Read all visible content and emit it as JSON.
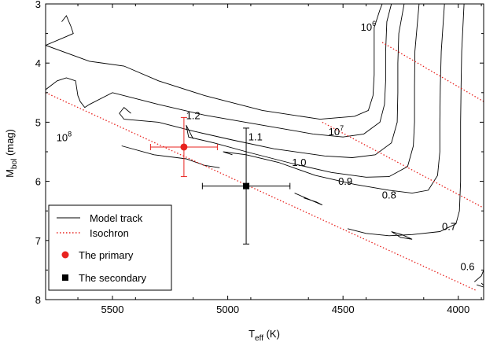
{
  "chart_data": {
    "type": "scatter",
    "xlabel": "T",
    "xlabel_sub": "eff",
    "xlabel_unit": " (K)",
    "ylabel": "M",
    "ylabel_sub": "bol",
    "ylabel_unit": " (mag)",
    "xlim": [
      5790,
      3890
    ],
    "ylim": [
      8,
      3
    ],
    "x_ticks": [
      5500,
      5000,
      4500,
      4000
    ],
    "y_ticks": [
      3,
      4,
      5,
      6,
      7,
      8
    ],
    "colors": {
      "track": "#000000",
      "isochron": "#e8231f",
      "primary": "#e8231f",
      "secondary": "#000000"
    },
    "legend": {
      "position": "bottom-left",
      "entries": [
        {
          "label": "Model track",
          "style": "line"
        },
        {
          "label": "Isochron",
          "style": "dotted-line"
        },
        {
          "label": "The primary",
          "style": "circle"
        },
        {
          "label": "The secondary",
          "style": "square"
        }
      ]
    },
    "isochrons": [
      {
        "label": "10",
        "exponent": "6",
        "points": [
          [
            4330,
            3.65
          ],
          [
            3890,
            4.65
          ]
        ]
      },
      {
        "label": "10",
        "exponent": "7",
        "points": [
          [
            4590,
            5.0
          ],
          [
            3890,
            6.45
          ]
        ]
      },
      {
        "label": "10",
        "exponent": "8",
        "points": [
          [
            5790,
            4.5
          ],
          [
            3920,
            7.85
          ]
        ]
      }
    ],
    "tracks": [
      {
        "mass": "1.2",
        "points": [
          [
            5720,
            3.3
          ],
          [
            5700,
            3.2
          ],
          [
            5680,
            3.38
          ],
          [
            5670,
            3.5
          ],
          [
            5700,
            3.55
          ],
          [
            5790,
            3.7
          ],
          [
            5600,
            3.97
          ],
          [
            5450,
            4.05
          ],
          [
            5300,
            4.3
          ],
          [
            5100,
            4.55
          ],
          [
            4850,
            4.8
          ],
          [
            4600,
            4.95
          ],
          [
            4450,
            4.9
          ],
          [
            4390,
            4.8
          ],
          [
            4370,
            4.55
          ],
          [
            4365,
            4.2
          ],
          [
            4365,
            3.8
          ],
          [
            4365,
            3.4
          ],
          [
            4340,
            3.1
          ],
          [
            4330,
            3.0
          ]
        ]
      },
      {
        "mass": "1.1",
        "points": [
          [
            5790,
            4.45
          ],
          [
            5740,
            4.3
          ],
          [
            5700,
            4.25
          ],
          [
            5660,
            4.3
          ],
          [
            5650,
            4.55
          ],
          [
            5640,
            4.65
          ],
          [
            5620,
            4.75
          ],
          [
            5600,
            4.7
          ],
          [
            5500,
            4.5
          ],
          [
            5300,
            4.7
          ],
          [
            5100,
            4.88
          ],
          [
            4850,
            5.05
          ],
          [
            4630,
            5.2
          ],
          [
            4500,
            5.25
          ],
          [
            4410,
            5.2
          ],
          [
            4340,
            5.0
          ],
          [
            4320,
            4.7
          ],
          [
            4315,
            4.3
          ],
          [
            4315,
            3.8
          ],
          [
            4310,
            3.3
          ],
          [
            4290,
            3.0
          ]
        ]
      },
      {
        "mass": "1.0",
        "points": [
          [
            5420,
            4.85
          ],
          [
            5450,
            4.75
          ],
          [
            5470,
            4.85
          ],
          [
            5450,
            4.95
          ],
          [
            5300,
            5.0
          ],
          [
            5150,
            5.15
          ],
          [
            4980,
            5.3
          ],
          [
            4800,
            5.45
          ],
          [
            4580,
            5.57
          ],
          [
            4460,
            5.6
          ],
          [
            4360,
            5.55
          ],
          [
            4290,
            5.35
          ],
          [
            4265,
            5.0
          ],
          [
            4262,
            4.5
          ],
          [
            4262,
            4.0
          ],
          [
            4258,
            3.5
          ],
          [
            4235,
            3.0
          ]
        ]
      },
      {
        "mass": "0.9",
        "points": [
          [
            5150,
            5.28
          ],
          [
            5180,
            5.05
          ],
          [
            5170,
            5.25
          ],
          [
            5060,
            5.35
          ],
          [
            4900,
            5.52
          ],
          [
            4720,
            5.7
          ],
          [
            4550,
            5.85
          ],
          [
            4400,
            5.93
          ],
          [
            4300,
            5.92
          ],
          [
            4220,
            5.75
          ],
          [
            4195,
            5.4
          ],
          [
            4190,
            5.0
          ],
          [
            4190,
            4.4
          ],
          [
            4188,
            3.8
          ],
          [
            4170,
            3.0
          ]
        ]
      },
      {
        "mass": "0.8",
        "points": [
          [
            4980,
            5.55
          ],
          [
            5020,
            5.5
          ],
          [
            4920,
            5.55
          ],
          [
            4780,
            5.68
          ],
          [
            4620,
            5.9
          ],
          [
            4450,
            6.05
          ],
          [
            4300,
            6.15
          ],
          [
            4200,
            6.2
          ],
          [
            4130,
            6.15
          ],
          [
            4090,
            5.9
          ],
          [
            4080,
            5.5
          ],
          [
            4080,
            5.0
          ],
          [
            4078,
            4.4
          ],
          [
            4074,
            3.8
          ],
          [
            4060,
            3.0
          ]
        ]
      },
      {
        "mass": "0.7",
        "points": [
          [
            4480,
            6.8
          ],
          [
            4400,
            6.88
          ],
          [
            4300,
            6.92
          ],
          [
            4200,
            6.9
          ],
          [
            4080,
            6.85
          ],
          [
            4010,
            6.72
          ],
          [
            3995,
            6.5
          ],
          [
            3990,
            6.0
          ],
          [
            3990,
            5.5
          ],
          [
            3990,
            5.0
          ],
          [
            3988,
            4.4
          ],
          [
            3985,
            3.8
          ],
          [
            3975,
            3.0
          ]
        ]
      },
      {
        "mass": "0.6",
        "points": [
          [
            3930,
            7.7
          ],
          [
            3900,
            7.6
          ],
          [
            3890,
            7.5
          ]
        ]
      }
    ],
    "track_labels": [
      {
        "text": "1.2",
        "x": 5150,
        "y": 4.95
      },
      {
        "text": "1.1",
        "x": 4880,
        "y": 5.31
      },
      {
        "text": "1.0",
        "x": 4690,
        "y": 5.74
      },
      {
        "text": "0.9",
        "x": 4490,
        "y": 6.06
      },
      {
        "text": "0.8",
        "x": 4300,
        "y": 6.29
      },
      {
        "text": "0.7",
        "x": 4040,
        "y": 6.82
      },
      {
        "text": "0.6",
        "x": 3960,
        "y": 7.5
      }
    ],
    "model_loops": [
      [
        [
          5460,
          5.4
        ],
        [
          5320,
          5.55
        ],
        [
          5180,
          5.62
        ],
        [
          5100,
          5.73
        ],
        [
          5035,
          5.77
        ]
      ],
      [
        [
          4710,
          6.2
        ],
        [
          4650,
          6.3
        ],
        [
          4590,
          6.4
        ],
        [
          4615,
          6.35
        ],
        [
          4670,
          6.28
        ]
      ],
      [
        [
          4290,
          6.85
        ],
        [
          4250,
          6.95
        ],
        [
          4200,
          6.98
        ],
        [
          4245,
          6.9
        ],
        [
          4290,
          6.85
        ]
      ],
      [
        [
          3920,
          7.75
        ],
        [
          3880,
          7.8
        ],
        [
          3900,
          7.72
        ]
      ]
    ],
    "primary": {
      "x": 5190,
      "y": 5.42,
      "xerr": 145,
      "yerr": 0.5
    },
    "secondary": {
      "x": 4920,
      "y": 6.08,
      "xerr": 190,
      "yerr": 0.98
    }
  }
}
